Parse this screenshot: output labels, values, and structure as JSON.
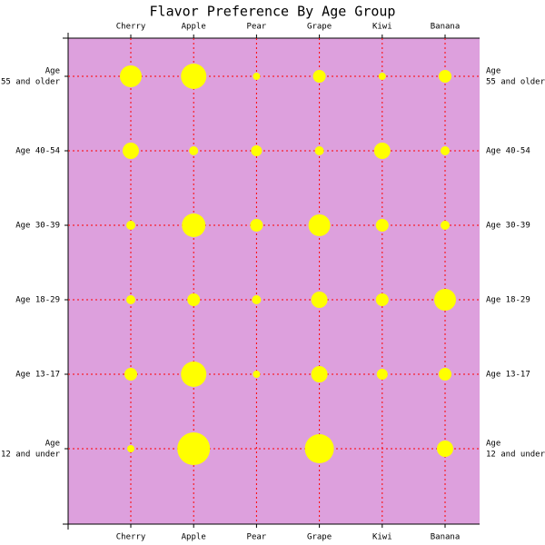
{
  "chart_data": {
    "type": "bubble-matrix",
    "title": "Flavor Preference By Age Group",
    "categories": [
      "Cherry",
      "Apple",
      "Pear",
      "Grape",
      "Kiwi",
      "Banana"
    ],
    "y_categories": [
      [
        "Age",
        "55 and older"
      ],
      [
        "Age 40-54"
      ],
      [
        "Age 30-39"
      ],
      [
        "Age 18-29"
      ],
      [
        "Age 13-17"
      ],
      [
        "Age",
        "12 and under"
      ]
    ],
    "values": [
      [
        12,
        14,
        4,
        7,
        4,
        7
      ],
      [
        9,
        5,
        6,
        5,
        9,
        5
      ],
      [
        5,
        13,
        7,
        12,
        7,
        5
      ],
      [
        5,
        7,
        5,
        9,
        7,
        12
      ],
      [
        7,
        14,
        4,
        9,
        6,
        7
      ],
      [
        4,
        18,
        null,
        16,
        null,
        9
      ]
    ],
    "color": "#ffff00",
    "background": "#dda0dd",
    "grid_color": "#ff0000",
    "grid": true
  }
}
